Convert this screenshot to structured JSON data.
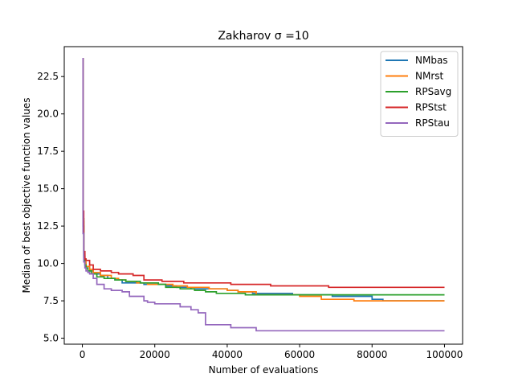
{
  "chart_data": {
    "type": "line",
    "title": "Zakharov σ =10",
    "xlabel": "Number of evaluations",
    "ylabel": "Median of best objective function values",
    "xlim": [
      -5000,
      105000
    ],
    "ylim": [
      4.6,
      24.5
    ],
    "xticks": [
      0,
      20000,
      40000,
      60000,
      80000,
      100000
    ],
    "xtick_labels": [
      "0",
      "20000",
      "40000",
      "60000",
      "80000",
      "100000"
    ],
    "yticks": [
      5.0,
      7.5,
      10.0,
      12.5,
      15.0,
      17.5,
      20.0,
      22.5
    ],
    "ytick_labels": [
      "5.0",
      "7.5",
      "10.0",
      "12.5",
      "15.0",
      "17.5",
      "20.0",
      "22.5"
    ],
    "grid": false,
    "legend_position": "top-right",
    "series": [
      {
        "name": "NMbas",
        "color": "#1f77b4",
        "x": [
          0,
          200,
          400,
          700,
          1000,
          2000,
          3000,
          5000,
          7000,
          9000,
          11000,
          13000,
          17000,
          20000,
          23000,
          26000,
          30000,
          34000,
          40000,
          43000,
          47000,
          52000,
          58000,
          63000,
          69000,
          74000,
          80000,
          83000,
          90000,
          100000
        ],
        "y": [
          23.7,
          12.5,
          10.4,
          10.0,
          9.8,
          9.5,
          9.3,
          9.2,
          9.0,
          8.9,
          8.7,
          8.7,
          8.6,
          8.6,
          8.5,
          8.4,
          8.3,
          8.3,
          8.2,
          8.1,
          8.0,
          8.0,
          7.9,
          7.9,
          7.8,
          7.8,
          7.6,
          7.5,
          7.5,
          7.5
        ]
      },
      {
        "name": "NMrst",
        "color": "#ff7f0e",
        "x": [
          0,
          200,
          400,
          700,
          1000,
          2000,
          3000,
          5000,
          8000,
          10000,
          12000,
          15000,
          18000,
          21000,
          25000,
          29000,
          35000,
          40000,
          43000,
          48000,
          55000,
          60000,
          66000,
          75000,
          80000,
          90000,
          100000
        ],
        "y": [
          23.7,
          12.8,
          10.6,
          10.1,
          9.8,
          9.6,
          9.4,
          9.2,
          9.0,
          8.9,
          8.8,
          8.7,
          8.6,
          8.6,
          8.5,
          8.4,
          8.3,
          8.2,
          8.1,
          7.9,
          7.9,
          7.8,
          7.6,
          7.5,
          7.5,
          7.5,
          7.5
        ]
      },
      {
        "name": "RPSavg",
        "color": "#2ca02c",
        "x": [
          0,
          200,
          400,
          700,
          1000,
          1500,
          2500,
          4000,
          6000,
          9000,
          12000,
          16000,
          21000,
          23000,
          27000,
          31000,
          34000,
          37000,
          40000,
          45000,
          55000,
          65000,
          75000,
          90000,
          100000
        ],
        "y": [
          23.7,
          13.0,
          10.5,
          9.9,
          9.7,
          9.5,
          9.3,
          9.1,
          9.0,
          8.9,
          8.8,
          8.7,
          8.6,
          8.4,
          8.3,
          8.2,
          8.1,
          8.0,
          8.0,
          7.9,
          7.9,
          7.9,
          7.9,
          7.9,
          7.9
        ]
      },
      {
        "name": "RPStst",
        "color": "#d62728",
        "x": [
          0,
          200,
          400,
          700,
          1000,
          2000,
          3000,
          5000,
          8000,
          10000,
          14000,
          17000,
          22000,
          24000,
          28000,
          32000,
          36000,
          41000,
          46000,
          52000,
          60000,
          68000,
          75000,
          85000,
          100000
        ],
        "y": [
          23.7,
          13.5,
          10.8,
          10.3,
          10.2,
          9.9,
          9.6,
          9.5,
          9.4,
          9.3,
          9.2,
          8.9,
          8.8,
          8.8,
          8.7,
          8.7,
          8.7,
          8.6,
          8.6,
          8.5,
          8.5,
          8.4,
          8.4,
          8.4,
          8.4
        ]
      },
      {
        "name": "RPStau",
        "color": "#9467bd",
        "x": [
          0,
          200,
          400,
          700,
          1000,
          1500,
          2000,
          3000,
          4000,
          6000,
          8000,
          11000,
          13000,
          16000,
          17000,
          18000,
          20000,
          24000,
          27000,
          30000,
          32000,
          34000,
          38000,
          41000,
          44000,
          48000,
          55000,
          65000,
          80000,
          100000
        ],
        "y": [
          23.7,
          12.0,
          10.1,
          9.7,
          9.5,
          9.4,
          9.3,
          9.0,
          8.6,
          8.3,
          8.2,
          8.1,
          7.8,
          7.8,
          7.5,
          7.4,
          7.3,
          7.3,
          7.1,
          6.9,
          6.7,
          5.9,
          5.9,
          5.7,
          5.7,
          5.5,
          5.5,
          5.5,
          5.5,
          5.5
        ]
      }
    ]
  }
}
